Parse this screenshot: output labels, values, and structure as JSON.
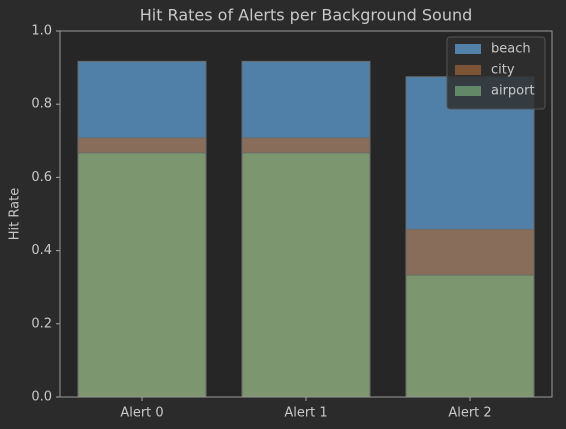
{
  "chart_data": {
    "type": "bar",
    "title": "Hit Rates of Alerts per Background Sound",
    "ylabel": "Hit Rate",
    "categories": [
      "Alert 0",
      "Alert 1",
      "Alert 2"
    ],
    "series": [
      {
        "name": "beach",
        "color": "#63a6e0",
        "values": [
          0.917,
          0.917,
          0.875
        ]
      },
      {
        "name": "city",
        "color": "#a0653b",
        "values": [
          0.708,
          0.708,
          0.458
        ]
      },
      {
        "name": "airport",
        "color": "#77aa79",
        "values": [
          0.667,
          0.667,
          0.333
        ]
      }
    ],
    "ylim": [
      0,
      1.0
    ],
    "yticks": [
      {
        "value": 0,
        "label": "0.0"
      },
      0.2,
      0.4,
      0.6,
      0.8,
      {
        "value": 1.0,
        "label": "1.0"
      }
    ],
    "legend": "upper right"
  }
}
